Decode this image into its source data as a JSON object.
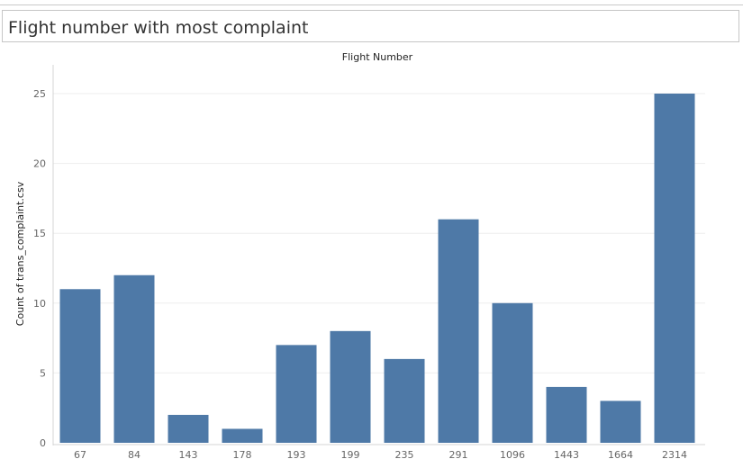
{
  "page": {
    "title": "Flight number with most complaint"
  },
  "chart_data": {
    "type": "bar",
    "title": "Flight number with most complaint",
    "column_header": "Flight Number",
    "xlabel": "",
    "ylabel": "Count of trans_complaint.csv",
    "categories": [
      "67",
      "84",
      "143",
      "178",
      "193",
      "199",
      "235",
      "291",
      "1096",
      "1443",
      "1664",
      "2314"
    ],
    "values": [
      11,
      12,
      2,
      1,
      7,
      8,
      6,
      16,
      10,
      4,
      3,
      25
    ],
    "ylim": [
      0,
      25
    ],
    "yticks": [
      0,
      5,
      10,
      15,
      20,
      25
    ],
    "grid": true,
    "legend": "none",
    "bar_color": "#4e79a7",
    "grid_color": "#eeeeee",
    "axis_color": "#d4d4d4"
  }
}
